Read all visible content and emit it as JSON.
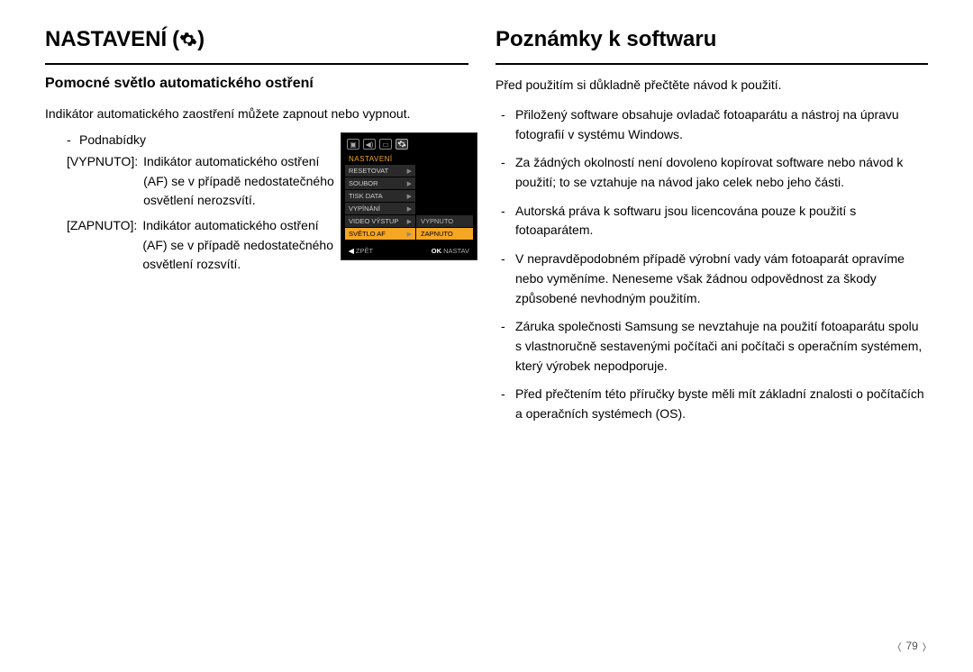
{
  "left": {
    "heading": "NASTAVENÍ",
    "subheading": "Pomocné světlo automatického ostření",
    "intro": "Indikátor automatického zaostření můžete zapnout nebo vypnout.",
    "submenu_label": "Podnabídky",
    "options": [
      {
        "key": "[VYPNUTO]:",
        "desc": "Indikátor automatického ostření (AF) se v případě nedostatečného osvětlení nerozsvítí."
      },
      {
        "key": "[ZAPNUTO]:",
        "desc": "Indikátor automatického ostření (AF) se v případě nedostatečného osvětlení rozsvítí."
      }
    ],
    "lcd": {
      "title": "NASTAVENÍ",
      "items": [
        "RESETOVAT",
        "SOUBOR",
        "TISK DATA",
        "VYPÍNÁNÍ",
        "VIDEO VÝSTUP",
        "SVĚTLO AF"
      ],
      "selected_index": 5,
      "sub_items": [
        "VYPNUTO",
        "ZAPNUTO"
      ],
      "sub_selected": 1,
      "footer_left_key": "◀",
      "footer_left": "ZPĚT",
      "footer_right_key": "OK",
      "footer_right": "NASTAV"
    }
  },
  "right": {
    "heading": "Poznámky k softwaru",
    "intro": "Před použitím si důkladně přečtěte návod k použití.",
    "bullets": [
      "Přiložený software obsahuje ovladač fotoaparátu a nástroj na úpravu fotografií v systému Windows.",
      "Za žádných okolností není dovoleno kopírovat software nebo návod k použití; to se vztahuje na návod jako celek nebo jeho části.",
      "Autorská práva k softwaru jsou licencována pouze k použití s fotoaparátem.",
      "V nepravděpodobném případě výrobní vady vám fotoaparát opravíme nebo vyměníme.  Neneseme však žádnou odpovědnost za škody způsobené nevhodným použitím.",
      "Záruka společnosti Samsung se nevztahuje na použití fotoaparátu spolu s vlastnoručně sestavenými počítači ani počítači s operačním systémem, který výrobek nepodporuje.",
      "Před přečtením této příručky byste měli mít základní znalosti o počítačích a operačních systémech (OS)."
    ]
  },
  "page_number": "79"
}
